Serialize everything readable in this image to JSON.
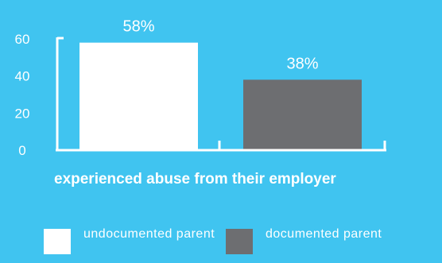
{
  "chart_data": {
    "type": "bar",
    "categories": [
      "undocumented parent",
      "documented parent"
    ],
    "values": [
      58,
      38
    ],
    "data_labels": [
      "58%",
      "38%"
    ],
    "xlabel": "experienced abuse from their employer",
    "ylabel": "",
    "ylim": [
      0,
      60
    ],
    "yticks": [
      0,
      20,
      40,
      60
    ],
    "grid": false,
    "legend_placement": "bottom",
    "colors": [
      "#ffffff",
      "#6d6e71"
    ],
    "background": "#40c4f0",
    "axis_color": "#ffffff"
  },
  "legend": [
    {
      "label": "undocumented parent",
      "color": "#ffffff"
    },
    {
      "label": "documented parent",
      "color": "#6d6e71"
    }
  ]
}
